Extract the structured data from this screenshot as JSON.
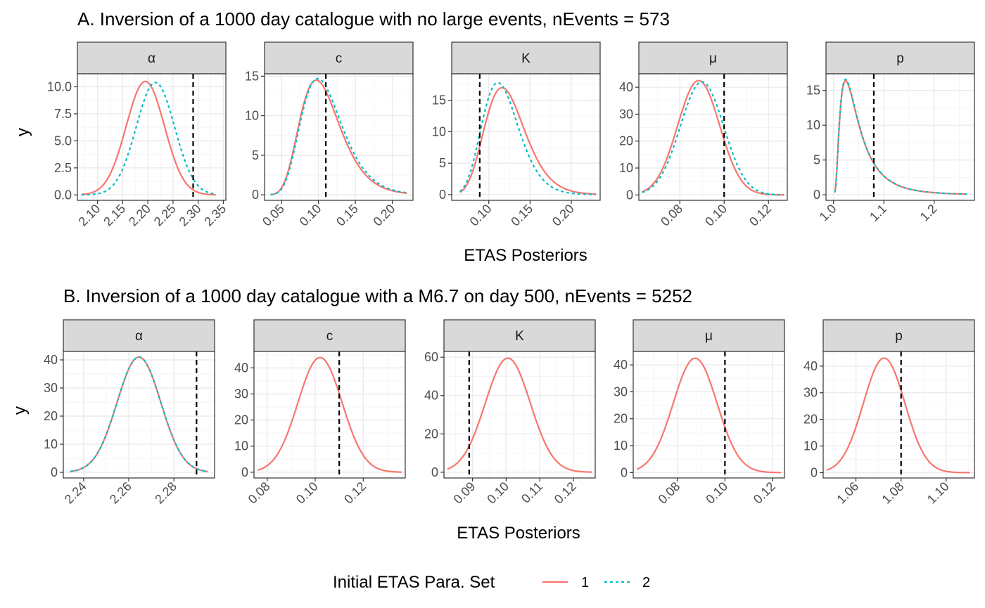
{
  "colors": {
    "set1": "#F8766D",
    "set2": "#00BFC4",
    "reference": "#000000",
    "strip": "#D9D9D9",
    "grid_major": "#EBEBEB",
    "grid_minor": "#F5F5F5",
    "axis_text": "#4D4D4D"
  },
  "legend": {
    "title": "Initial ETAS Para. Set",
    "items": [
      {
        "label": "1",
        "color": "#F8766D",
        "linetype": "solid"
      },
      {
        "label": "2",
        "color": "#00BFC4",
        "linetype": "dashed"
      }
    ],
    "placement": "bottom"
  },
  "chart_data": [
    {
      "type": "line",
      "title": "A.  Inversion of a 1000 day catalogue with no large events, nEvents = 573",
      "xlabel": "ETAS Posteriors",
      "ylabel": "y",
      "panels": [
        {
          "strip": "α",
          "xlim": [
            2.06,
            2.355
          ],
          "ylim": [
            -0.5,
            11.2
          ],
          "xticks": [
            2.1,
            2.15,
            2.2,
            2.25,
            2.3,
            2.35
          ],
          "xtick_labels": [
            "2.10",
            "2.15",
            "2.20",
            "2.25",
            "2.30",
            "2.35"
          ],
          "yticks": [
            0,
            2.5,
            5,
            7.5,
            10
          ],
          "ytick_labels": [
            "0.0",
            "2.5",
            "5.0",
            "7.5",
            "10.0"
          ],
          "vline": 2.29,
          "x_range": [
            2.068,
            2.335
          ],
          "series": [
            {
              "name": "1",
              "dist": "normal",
              "mean": 2.195,
              "sd": 0.038,
              "peak": 10.5
            },
            {
              "name": "2",
              "dist": "normal",
              "mean": 2.215,
              "sd": 0.038,
              "peak": 10.4
            }
          ]
        },
        {
          "strip": "c",
          "xlim": [
            0.027,
            0.228
          ],
          "ylim": [
            -0.7,
            15.3
          ],
          "xticks": [
            0.05,
            0.1,
            0.15,
            0.2
          ],
          "xtick_labels": [
            "0.05",
            "0.10",
            "0.15",
            "0.20"
          ],
          "yticks": [
            0,
            5,
            10,
            15
          ],
          "ytick_labels": [
            "0",
            "5",
            "10",
            "15"
          ],
          "vline": 0.11,
          "x_range": [
            0.035,
            0.22
          ],
          "series": [
            {
              "name": "1",
              "dist": "lognormal",
              "mode": 0.097,
              "sigma": 0.28,
              "peak": 14.5
            },
            {
              "name": "2",
              "dist": "lognormal",
              "mode": 0.099,
              "sigma": 0.28,
              "peak": 14.7
            }
          ]
        },
        {
          "strip": "K",
          "xlim": [
            0.055,
            0.235
          ],
          "ylim": [
            -0.9,
            19.2
          ],
          "xticks": [
            0.1,
            0.15,
            0.2
          ],
          "xtick_labels": [
            "0.10",
            "0.15",
            "0.20"
          ],
          "yticks": [
            0,
            5,
            10,
            15
          ],
          "ytick_labels": [
            "0",
            "5",
            "10",
            "15"
          ],
          "vline": 0.089,
          "x_range": [
            0.065,
            0.23
          ],
          "series": [
            {
              "name": "1",
              "dist": "lognormal",
              "mode": 0.116,
              "sigma": 0.21,
              "peak": 17.0
            },
            {
              "name": "2",
              "dist": "lognormal",
              "mode": 0.111,
              "sigma": 0.2,
              "peak": 17.8
            }
          ]
        },
        {
          "strip": "μ",
          "xlim": [
            0.0615,
            0.1285
          ],
          "ylim": [
            -2.0,
            45.0
          ],
          "xticks": [
            0.06,
            0.08,
            0.1,
            0.12
          ],
          "xtick_labels": [
            "0.06",
            "0.08",
            "0.10",
            "0.12"
          ],
          "yticks": [
            0,
            10,
            20,
            30,
            40
          ],
          "ytick_labels": [
            "0",
            "10",
            "20",
            "30",
            "40"
          ],
          "vline": 0.1,
          "x_range": [
            0.063,
            0.127
          ],
          "series": [
            {
              "name": "1",
              "dist": "normal",
              "mean": 0.0885,
              "sd": 0.0095,
              "peak": 42.5
            },
            {
              "name": "2",
              "dist": "normal",
              "mean": 0.09,
              "sd": 0.0098,
              "peak": 42.0
            }
          ]
        },
        {
          "strip": "p",
          "xlim": [
            0.985,
            1.28
          ],
          "ylim": [
            -0.8,
            17.4
          ],
          "xticks": [
            1.0,
            1.1,
            1.2
          ],
          "xtick_labels": [
            "1.0",
            "1.1",
            "1.2"
          ],
          "yticks": [
            0,
            5,
            10,
            15
          ],
          "ytick_labels": [
            "0",
            "5",
            "10",
            "15"
          ],
          "vline": 1.08,
          "x_range": [
            1.003,
            1.265
          ],
          "series": [
            {
              "name": "1",
              "dist": "shifted-lognormal",
              "shift": 1.0,
              "mode": 0.024,
              "sigma": 0.75,
              "peak": 16.4
            },
            {
              "name": "2",
              "dist": "shifted-lognormal",
              "shift": 1.0,
              "mode": 0.024,
              "sigma": 0.75,
              "peak": 16.6
            }
          ]
        }
      ]
    },
    {
      "type": "line",
      "title": "B. Inversion of a 1000 day catalogue with a M6.7 on day 500, nEvents = 5252",
      "xlabel": "ETAS Posteriors",
      "ylabel": "y",
      "panels": [
        {
          "strip": "α",
          "xlim": [
            2.231,
            2.298
          ],
          "ylim": [
            -2.0,
            43.0
          ],
          "xticks": [
            2.24,
            2.26,
            2.28
          ],
          "xtick_labels": [
            "2.24",
            "2.26",
            "2.28"
          ],
          "yticks": [
            0,
            10,
            20,
            30,
            40
          ],
          "ytick_labels": [
            "0",
            "10",
            "20",
            "30",
            "40"
          ],
          "vline": 2.29,
          "x_range": [
            2.234,
            2.295
          ],
          "series": [
            {
              "name": "1",
              "dist": "normal",
              "mean": 2.2645,
              "sd": 0.0097,
              "peak": 41.0
            },
            {
              "name": "2",
              "dist": "normal",
              "mean": 2.2645,
              "sd": 0.0097,
              "peak": 41.0
            }
          ]
        },
        {
          "strip": "c",
          "xlim": [
            0.0745,
            0.1375
          ],
          "ylim": [
            -2.2,
            46.3
          ],
          "xticks": [
            0.08,
            0.1,
            0.12
          ],
          "xtick_labels": [
            "0.08",
            "0.10",
            "0.12"
          ],
          "yticks": [
            0,
            10,
            20,
            30,
            40
          ],
          "ytick_labels": [
            "0",
            "10",
            "20",
            "30",
            "40"
          ],
          "vline": 0.11,
          "x_range": [
            0.076,
            0.136
          ],
          "series": [
            {
              "name": "1",
              "dist": "normal",
              "mean": 0.102,
              "sd": 0.0092,
              "peak": 44.0
            }
          ]
        },
        {
          "strip": "K",
          "xlim": [
            0.0815,
            0.1265
          ],
          "ylim": [
            -3.0,
            63.0
          ],
          "xticks": [
            0.08,
            0.09,
            0.1,
            0.11,
            0.12
          ],
          "xtick_labels": [
            "0.08",
            "0.09",
            "0.10",
            "0.11",
            "0.12"
          ],
          "yticks": [
            0,
            20,
            40,
            60
          ],
          "ytick_labels": [
            "0",
            "20",
            "40",
            "60"
          ],
          "vline": 0.089,
          "x_range": [
            0.0825,
            0.1255
          ],
          "series": [
            {
              "name": "1",
              "dist": "normal",
              "mean": 0.1005,
              "sd": 0.0067,
              "peak": 59.5
            }
          ]
        },
        {
          "strip": "μ",
          "xlim": [
            0.0615,
            0.125
          ],
          "ylim": [
            -2.0,
            45.0
          ],
          "xticks": [
            0.06,
            0.08,
            0.1,
            0.12
          ],
          "xtick_labels": [
            "0.06",
            "0.08",
            "0.10",
            "0.12"
          ],
          "yticks": [
            0,
            10,
            20,
            30,
            40
          ],
          "ytick_labels": [
            "0",
            "10",
            "20",
            "30",
            "40"
          ],
          "vline": 0.1,
          "x_range": [
            0.063,
            0.1235
          ],
          "series": [
            {
              "name": "1",
              "dist": "normal",
              "mean": 0.0875,
              "sd": 0.0092,
              "peak": 42.5
            }
          ]
        },
        {
          "strip": "p",
          "xlim": [
            1.0455,
            1.1125
          ],
          "ylim": [
            -2.0,
            45.5
          ],
          "xticks": [
            1.06,
            1.08,
            1.1
          ],
          "xtick_labels": [
            "1.06",
            "1.08",
            "1.10"
          ],
          "yticks": [
            0,
            10,
            20,
            30,
            40
          ],
          "ytick_labels": [
            "0",
            "10",
            "20",
            "30",
            "40"
          ],
          "vline": 1.08,
          "x_range": [
            1.047,
            1.1105
          ],
          "series": [
            {
              "name": "1",
              "dist": "normal",
              "mean": 1.0725,
              "sd": 0.0092,
              "peak": 43.0
            }
          ]
        }
      ]
    }
  ]
}
